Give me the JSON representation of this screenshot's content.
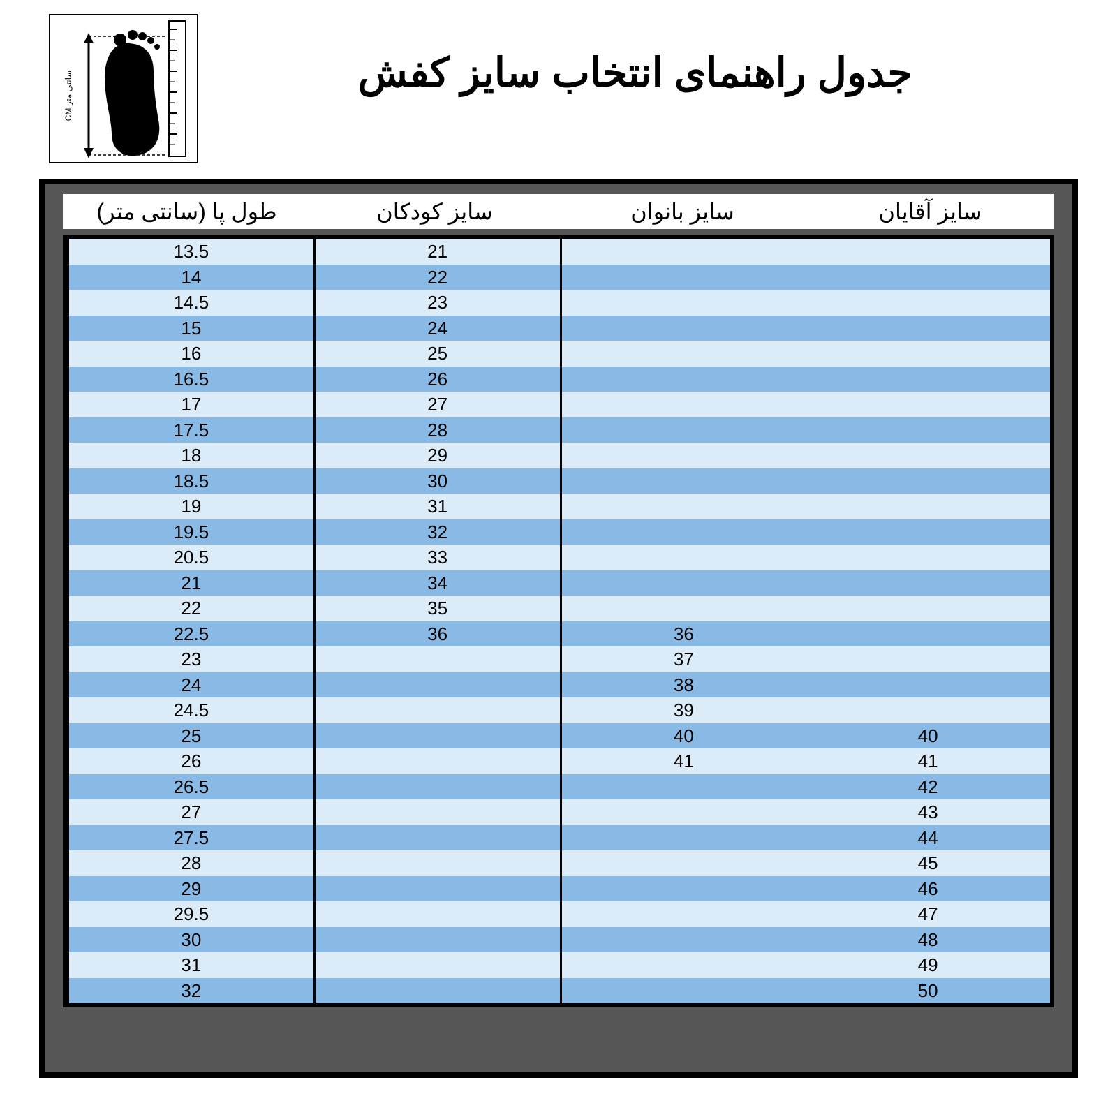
{
  "title": "جدول راهنمای انتخاب سایز کفش",
  "ruler_label": "سانتی متر CM",
  "colors": {
    "frame_bg": "#565656",
    "frame_border": "#000000",
    "row_light": "#dcebf8",
    "row_dark": "#88bae5",
    "header_bg": "#ffffff",
    "text": "#000000"
  },
  "columns": [
    "طول پا (سانتی متر)",
    "سایز کودکان",
    "سایز بانوان",
    "سایز آقایان"
  ],
  "rows": [
    {
      "len": "13.5",
      "kids": "21",
      "women": "",
      "men": ""
    },
    {
      "len": "14",
      "kids": "22",
      "women": "",
      "men": ""
    },
    {
      "len": "14.5",
      "kids": "23",
      "women": "",
      "men": ""
    },
    {
      "len": "15",
      "kids": "24",
      "women": "",
      "men": ""
    },
    {
      "len": "16",
      "kids": "25",
      "women": "",
      "men": ""
    },
    {
      "len": "16.5",
      "kids": "26",
      "women": "",
      "men": ""
    },
    {
      "len": "17",
      "kids": "27",
      "women": "",
      "men": ""
    },
    {
      "len": "17.5",
      "kids": "28",
      "women": "",
      "men": ""
    },
    {
      "len": "18",
      "kids": "29",
      "women": "",
      "men": ""
    },
    {
      "len": "18.5",
      "kids": "30",
      "women": "",
      "men": ""
    },
    {
      "len": "19",
      "kids": "31",
      "women": "",
      "men": ""
    },
    {
      "len": "19.5",
      "kids": "32",
      "women": "",
      "men": ""
    },
    {
      "len": "20.5",
      "kids": "33",
      "women": "",
      "men": ""
    },
    {
      "len": "21",
      "kids": "34",
      "women": "",
      "men": ""
    },
    {
      "len": "22",
      "kids": "35",
      "women": "",
      "men": ""
    },
    {
      "len": "22.5",
      "kids": "36",
      "women": "36",
      "men": ""
    },
    {
      "len": "23",
      "kids": "",
      "women": "37",
      "men": ""
    },
    {
      "len": "24",
      "kids": "",
      "women": "38",
      "men": ""
    },
    {
      "len": "24.5",
      "kids": "",
      "women": "39",
      "men": ""
    },
    {
      "len": "25",
      "kids": "",
      "women": "40",
      "men": "40"
    },
    {
      "len": "26",
      "kids": "",
      "women": "41",
      "men": "41"
    },
    {
      "len": "26.5",
      "kids": "",
      "women": "",
      "men": "42"
    },
    {
      "len": "27",
      "kids": "",
      "women": "",
      "men": "43"
    },
    {
      "len": "27.5",
      "kids": "",
      "women": "",
      "men": "44"
    },
    {
      "len": "28",
      "kids": "",
      "women": "",
      "men": "45"
    },
    {
      "len": "29",
      "kids": "",
      "women": "",
      "men": "46"
    },
    {
      "len": "29.5",
      "kids": "",
      "women": "",
      "men": "47"
    },
    {
      "len": "30",
      "kids": "",
      "women": "",
      "men": "48"
    },
    {
      "len": "31",
      "kids": "",
      "women": "",
      "men": "49"
    },
    {
      "len": "32",
      "kids": "",
      "women": "",
      "men": "50"
    }
  ]
}
